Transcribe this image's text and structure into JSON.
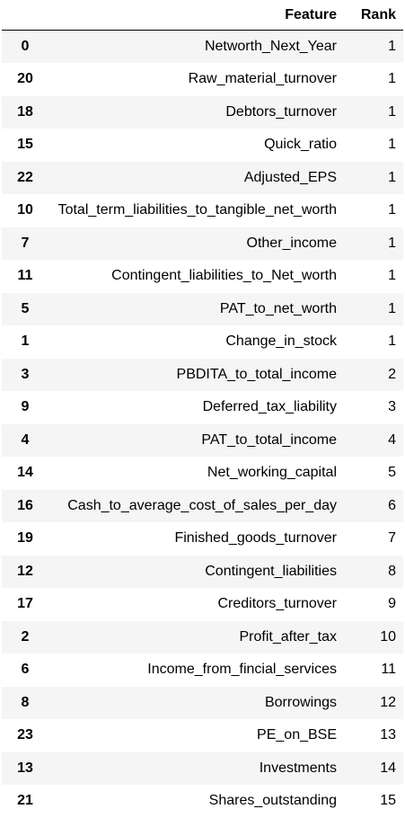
{
  "table": {
    "headers": {
      "index": "",
      "feature": "Feature",
      "rank": "Rank"
    },
    "rows": [
      {
        "index": "0",
        "feature": "Networth_Next_Year",
        "rank": "1"
      },
      {
        "index": "20",
        "feature": "Raw_material_turnover",
        "rank": "1"
      },
      {
        "index": "18",
        "feature": "Debtors_turnover",
        "rank": "1"
      },
      {
        "index": "15",
        "feature": "Quick_ratio",
        "rank": "1"
      },
      {
        "index": "22",
        "feature": "Adjusted_EPS",
        "rank": "1"
      },
      {
        "index": "10",
        "feature": "Total_term_liabilities_to_tangible_net_worth",
        "rank": "1"
      },
      {
        "index": "7",
        "feature": "Other_income",
        "rank": "1"
      },
      {
        "index": "11",
        "feature": "Contingent_liabilities_to_Net_worth",
        "rank": "1"
      },
      {
        "index": "5",
        "feature": "PAT_to_net_worth",
        "rank": "1"
      },
      {
        "index": "1",
        "feature": "Change_in_stock",
        "rank": "1"
      },
      {
        "index": "3",
        "feature": "PBDITA_to_total_income",
        "rank": "2"
      },
      {
        "index": "9",
        "feature": "Deferred_tax_liability",
        "rank": "3"
      },
      {
        "index": "4",
        "feature": "PAT_to_total_income",
        "rank": "4"
      },
      {
        "index": "14",
        "feature": "Net_working_capital",
        "rank": "5"
      },
      {
        "index": "16",
        "feature": "Cash_to_average_cost_of_sales_per_day",
        "rank": "6"
      },
      {
        "index": "19",
        "feature": "Finished_goods_turnover",
        "rank": "7"
      },
      {
        "index": "12",
        "feature": "Contingent_liabilities",
        "rank": "8"
      },
      {
        "index": "17",
        "feature": "Creditors_turnover",
        "rank": "9"
      },
      {
        "index": "2",
        "feature": "Profit_after_tax",
        "rank": "10"
      },
      {
        "index": "6",
        "feature": "Income_from_fincial_services",
        "rank": "11"
      },
      {
        "index": "8",
        "feature": "Borrowings",
        "rank": "12"
      },
      {
        "index": "23",
        "feature": "PE_on_BSE",
        "rank": "13"
      },
      {
        "index": "13",
        "feature": "Investments",
        "rank": "14"
      },
      {
        "index": "21",
        "feature": "Shares_outstanding",
        "rank": "15"
      }
    ]
  }
}
